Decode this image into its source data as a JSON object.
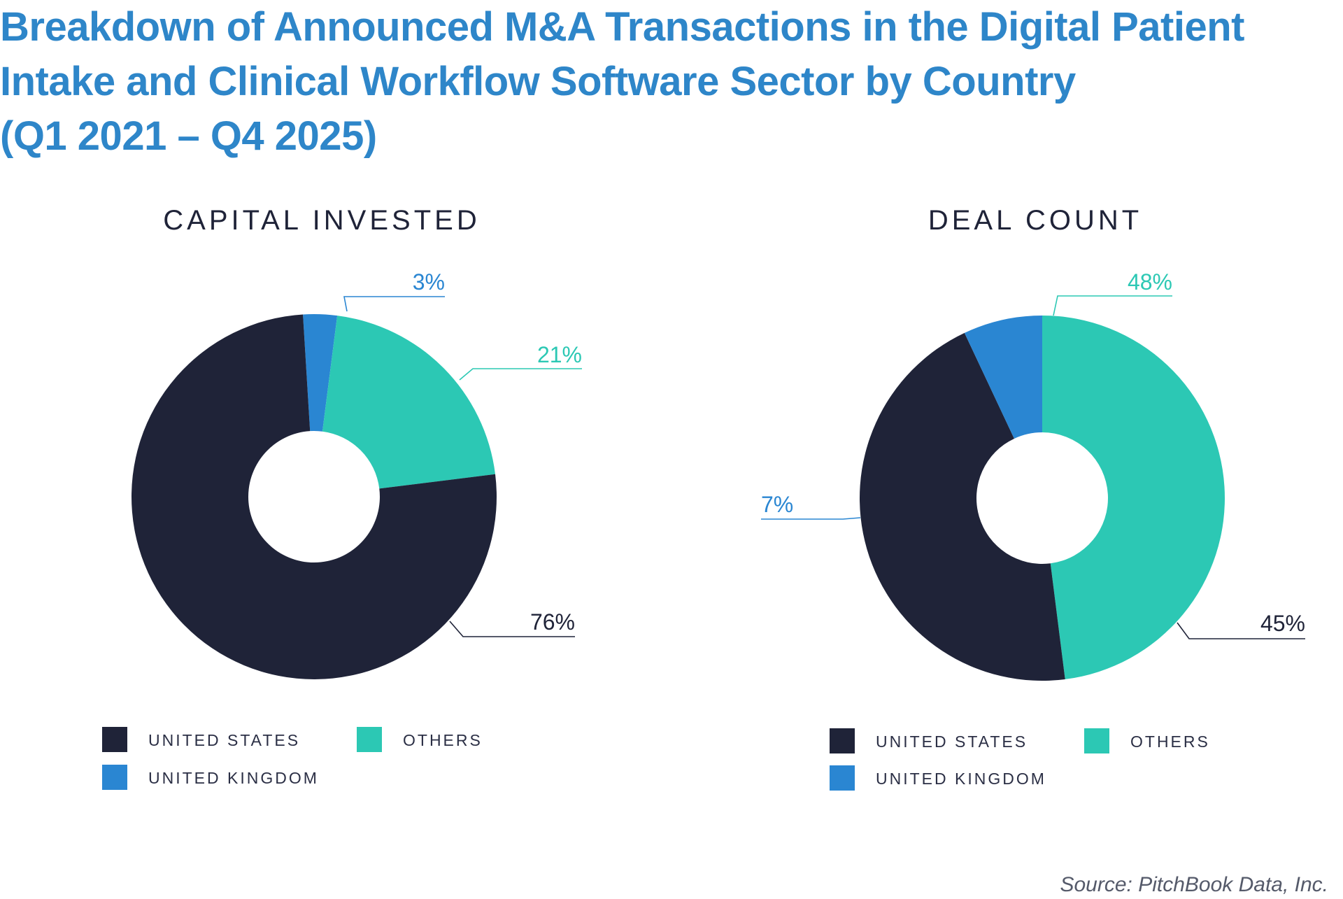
{
  "title_lines": [
    "Breakdown of Announced M&A Transactions in the Digital Patient",
    "Intake and Clinical Workflow Software Sector by Country",
    "(Q1 2021 – Q4 2025)"
  ],
  "source": "Source: PitchBook Data, Inc.",
  "colors": {
    "united_states": "#1f2338",
    "united_kingdom": "#2a86d2",
    "others": "#2cc8b4",
    "title": "#2e86c9"
  },
  "chart_data": [
    {
      "type": "pie",
      "variant": "donut",
      "title": "CAPITAL INVESTED",
      "slices": [
        {
          "label": "UNITED STATES",
          "value": 76,
          "display": "76%",
          "color_key": "united_states"
        },
        {
          "label": "UNITED KINGDOM",
          "value": 3,
          "display": "3%",
          "color_key": "united_kingdom"
        },
        {
          "label": "OTHERS",
          "value": 21,
          "display": "21%",
          "color_key": "others"
        }
      ],
      "legend": [
        {
          "label": "UNITED STATES",
          "color_key": "united_states"
        },
        {
          "label": "OTHERS",
          "color_key": "others"
        },
        {
          "label": "UNITED KINGDOM",
          "color_key": "united_kingdom"
        }
      ]
    },
    {
      "type": "pie",
      "variant": "donut",
      "title": "DEAL COUNT",
      "slices": [
        {
          "label": "UNITED STATES",
          "value": 45,
          "display": "45%",
          "color_key": "united_states"
        },
        {
          "label": "UNITED KINGDOM",
          "value": 7,
          "display": "7%",
          "color_key": "united_kingdom"
        },
        {
          "label": "OTHERS",
          "value": 48,
          "display": "48%",
          "color_key": "others"
        }
      ],
      "legend": [
        {
          "label": "UNITED STATES",
          "color_key": "united_states"
        },
        {
          "label": "OTHERS",
          "color_key": "others"
        },
        {
          "label": "UNITED KINGDOM",
          "color_key": "united_kingdom"
        }
      ]
    }
  ]
}
